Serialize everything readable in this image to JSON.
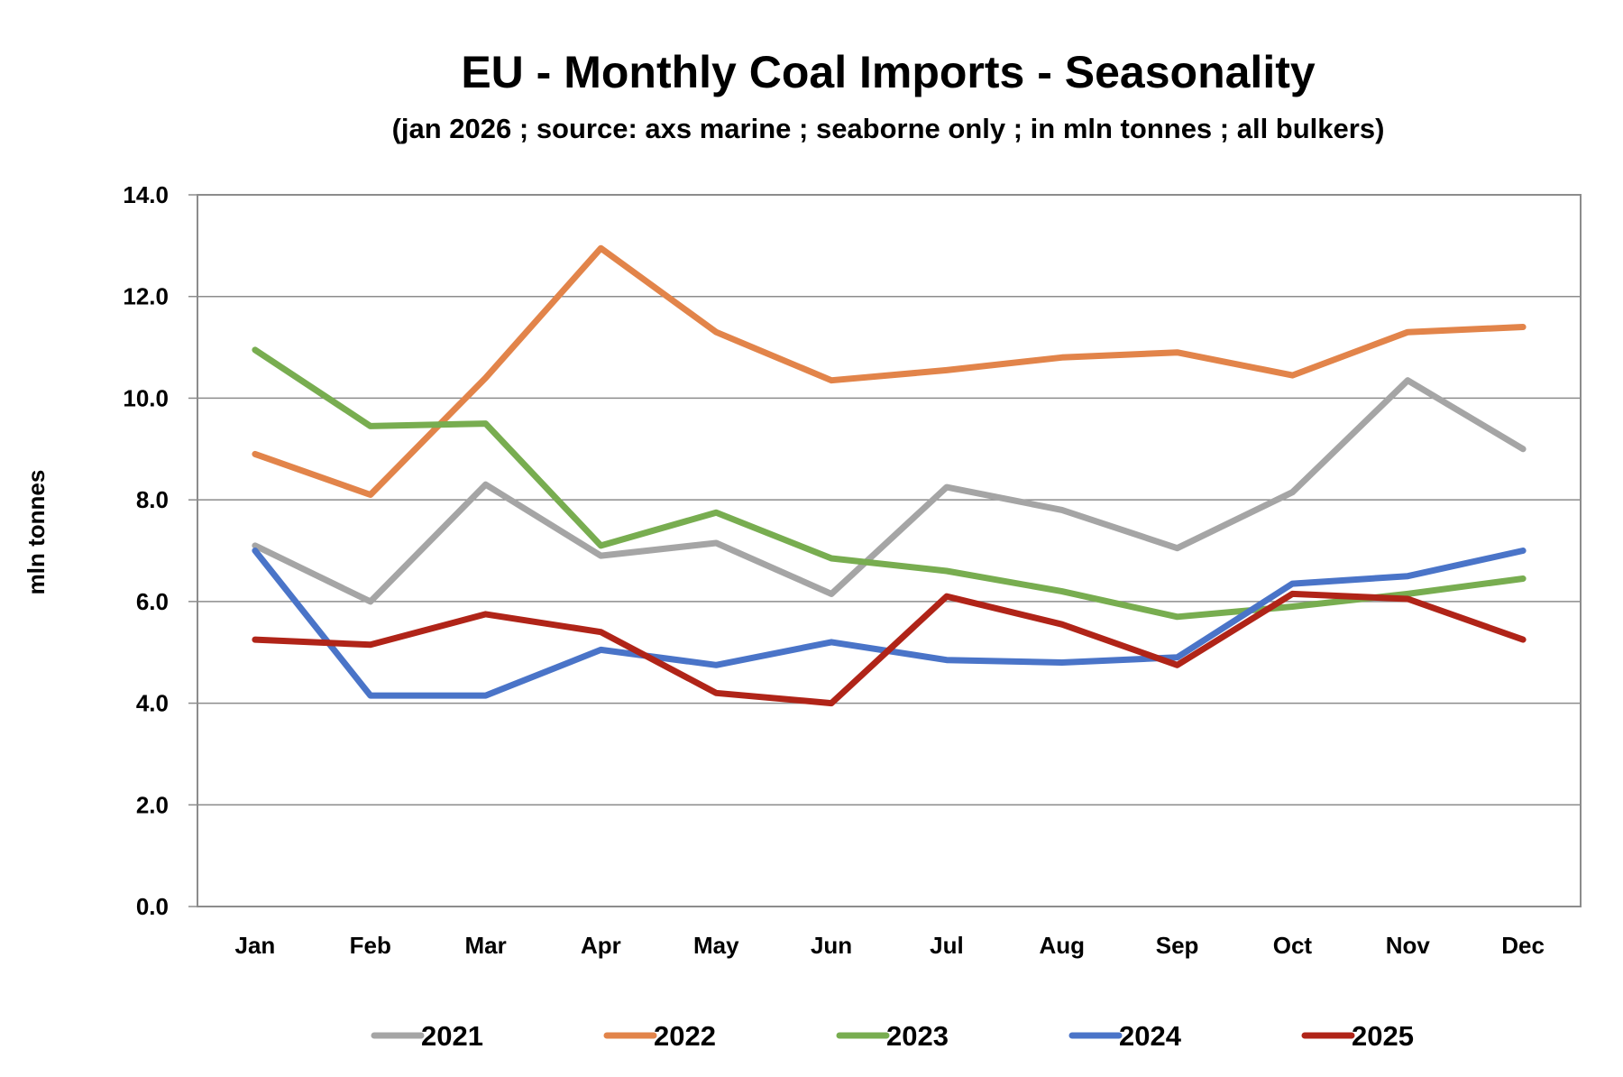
{
  "chart_data": {
    "type": "line",
    "title": "EU - Monthly Coal Imports - Seasonality",
    "subtitle": "(jan 2026 ; source: axs marine ; seaborne only ; in mln tonnes ; all bulkers)",
    "xlabel": "",
    "ylabel": "mln tonnes",
    "ylim": [
      0,
      14
    ],
    "yticks": [
      "0.0",
      "2.0",
      "4.0",
      "6.0",
      "8.0",
      "10.0",
      "12.0",
      "14.0"
    ],
    "grid": true,
    "legend_position": "bottom",
    "categories": [
      "Jan",
      "Feb",
      "Mar",
      "Apr",
      "May",
      "Jun",
      "Jul",
      "Aug",
      "Sep",
      "Oct",
      "Nov",
      "Dec"
    ],
    "series": [
      {
        "name": "2021",
        "color": "#A5A5A5",
        "values": [
          7.1,
          6.0,
          8.3,
          6.9,
          7.15,
          6.15,
          8.25,
          7.8,
          7.05,
          8.15,
          10.35,
          9.0
        ]
      },
      {
        "name": "2022",
        "color": "#E2844A",
        "values": [
          8.9,
          8.1,
          10.4,
          12.95,
          11.3,
          10.35,
          10.55,
          10.8,
          10.9,
          10.45,
          11.3,
          11.4
        ]
      },
      {
        "name": "2023",
        "color": "#78AD50",
        "values": [
          10.95,
          9.45,
          9.5,
          7.1,
          7.75,
          6.85,
          6.6,
          6.2,
          5.7,
          5.9,
          6.15,
          6.45
        ]
      },
      {
        "name": "2024",
        "color": "#4A74C8",
        "values": [
          7.0,
          4.15,
          4.15,
          5.05,
          4.75,
          5.2,
          4.85,
          4.8,
          4.9,
          6.35,
          6.5,
          7.0
        ]
      },
      {
        "name": "2025",
        "color": "#B02418",
        "values": [
          5.25,
          5.15,
          5.75,
          5.4,
          4.2,
          4.0,
          6.1,
          5.55,
          4.75,
          6.15,
          6.05,
          5.25
        ]
      }
    ]
  }
}
